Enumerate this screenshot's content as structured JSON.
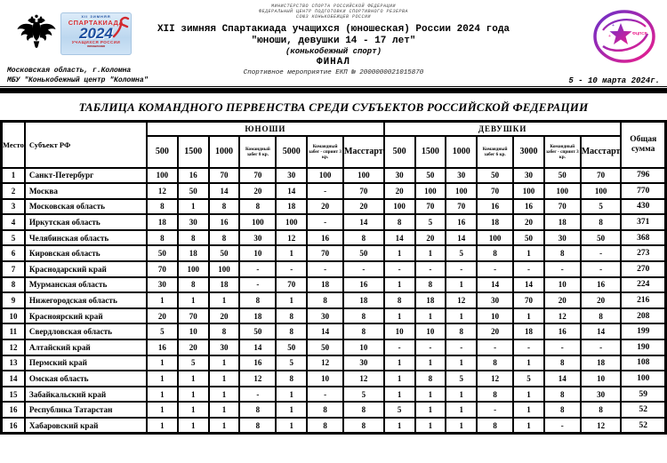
{
  "header": {
    "ministry_lines": [
      "МИНИСТЕРСТВО СПОРТА РОССИЙСКОЙ ФЕДЕРАЦИИ",
      "ФЕДЕРАЛЬНЫЙ ЦЕНТР ПОДГОТОВКИ СПОРТИВНОГО РЕЗЕРВА",
      "СОЮЗ КОНЬКОБЕЖЦЕВ РОССИИ"
    ],
    "title_line1": "XII зимняя Спартакиада учащихся (юношеская) России 2024 года",
    "title_line2": "\"юноши, девушки 14 - 17 лет\"",
    "title_line3": "(конькобежный спорт)",
    "title_line4": "ФИНАЛ",
    "event_line": "Спортивное мероприятие ЕКП № 2000000021015870",
    "venue_line1": "Московская область, г.Коломна",
    "venue_line2": "МБУ \"Конькобежный центр \"Коломна\"",
    "dates": "5 - 10 марта 2024г.",
    "spartakiada_logo": {
      "top": "XII ЗИМНЯЯ",
      "name": "СПАРТАКИАДА",
      "year": "2024",
      "sub": "УЧАЩИХСЯ РОССИИ",
      "sub2": "юношеская"
    },
    "fcpsr_logo_text": "ФЦПСР",
    "accent_colors": {
      "logo_purple": "#6a30c9",
      "logo_pink": "#ec1e8c",
      "logo_blue": "#1d4e9e",
      "logo_red": "#d22a2f"
    }
  },
  "table": {
    "title": "ТАБЛИЦА КОМАНДНОГО ПЕРВЕНСТВА СРЕДИ СУБЪЕКТОВ РОССИЙСКОЙ ФЕДЕРАЦИИ",
    "col_place": "Место",
    "col_subject": "Субъект РФ",
    "col_total": "Общая сумма",
    "group_boys": "ЮНОШИ",
    "group_girls": "ДЕВУШКИ",
    "boys_cols": [
      "500",
      "1500",
      "1000",
      "Командный забег 8 кр.",
      "5000",
      "Командный забег - спринт 3 кр.",
      "Масстарт"
    ],
    "girls_cols": [
      "500",
      "1500",
      "1000",
      "Командный забег 6 кр.",
      "3000",
      "Командный забег - спринт 3 кр.",
      "Масстарт"
    ],
    "rows": [
      {
        "place": "1",
        "subject": "Санкт-Петербург",
        "boys": [
          "100",
          "16",
          "70",
          "70",
          "30",
          "100",
          "100"
        ],
        "girls": [
          "30",
          "50",
          "30",
          "50",
          "30",
          "50",
          "70"
        ],
        "total": "796"
      },
      {
        "place": "2",
        "subject": "Москва",
        "boys": [
          "12",
          "50",
          "14",
          "20",
          "14",
          "-",
          "70"
        ],
        "girls": [
          "20",
          "100",
          "100",
          "70",
          "100",
          "100",
          "100"
        ],
        "total": "770"
      },
      {
        "place": "3",
        "subject": "Московская область",
        "boys": [
          "8",
          "1",
          "8",
          "8",
          "18",
          "20",
          "20"
        ],
        "girls": [
          "100",
          "70",
          "70",
          "16",
          "16",
          "70",
          "5"
        ],
        "total": "430"
      },
      {
        "place": "4",
        "subject": "Иркутская область",
        "boys": [
          "18",
          "30",
          "16",
          "100",
          "100",
          "-",
          "14"
        ],
        "girls": [
          "8",
          "5",
          "16",
          "18",
          "20",
          "18",
          "8"
        ],
        "total": "371"
      },
      {
        "place": "5",
        "subject": "Челябинская область",
        "boys": [
          "8",
          "8",
          "8",
          "30",
          "12",
          "16",
          "8"
        ],
        "girls": [
          "14",
          "20",
          "14",
          "100",
          "50",
          "30",
          "50"
        ],
        "total": "368"
      },
      {
        "place": "6",
        "subject": "Кировская область",
        "boys": [
          "50",
          "18",
          "50",
          "10",
          "1",
          "70",
          "50"
        ],
        "girls": [
          "1",
          "1",
          "5",
          "8",
          "1",
          "8",
          "-"
        ],
        "total": "273"
      },
      {
        "place": "7",
        "subject": "Краснодарский край",
        "boys": [
          "70",
          "100",
          "100",
          "-",
          "-",
          "-",
          "-"
        ],
        "girls": [
          "-",
          "-",
          "-",
          "-",
          "-",
          "-",
          "-"
        ],
        "total": "270"
      },
      {
        "place": "8",
        "subject": "Мурманская область",
        "boys": [
          "30",
          "8",
          "18",
          "-",
          "70",
          "18",
          "16"
        ],
        "girls": [
          "1",
          "8",
          "1",
          "14",
          "14",
          "10",
          "16"
        ],
        "total": "224"
      },
      {
        "place": "9",
        "subject": "Нижегородская область",
        "boys": [
          "1",
          "1",
          "1",
          "8",
          "1",
          "8",
          "18"
        ],
        "girls": [
          "8",
          "18",
          "12",
          "30",
          "70",
          "20",
          "20"
        ],
        "total": "216"
      },
      {
        "place": "10",
        "subject": "Красноярский край",
        "boys": [
          "20",
          "70",
          "20",
          "18",
          "8",
          "30",
          "8"
        ],
        "girls": [
          "1",
          "1",
          "1",
          "10",
          "1",
          "12",
          "8"
        ],
        "total": "208"
      },
      {
        "place": "11",
        "subject": "Свердловская область",
        "boys": [
          "5",
          "10",
          "8",
          "50",
          "8",
          "14",
          "8"
        ],
        "girls": [
          "10",
          "10",
          "8",
          "20",
          "18",
          "16",
          "14"
        ],
        "total": "199"
      },
      {
        "place": "12",
        "subject": "Алтайский край",
        "boys": [
          "16",
          "20",
          "30",
          "14",
          "50",
          "50",
          "10"
        ],
        "girls": [
          "-",
          "-",
          "-",
          "-",
          "-",
          "-",
          "-"
        ],
        "total": "190"
      },
      {
        "place": "13",
        "subject": "Пермский край",
        "boys": [
          "1",
          "5",
          "1",
          "16",
          "5",
          "12",
          "30"
        ],
        "girls": [
          "1",
          "1",
          "1",
          "8",
          "1",
          "8",
          "18"
        ],
        "total": "108"
      },
      {
        "place": "14",
        "subject": "Омская область",
        "boys": [
          "1",
          "1",
          "1",
          "12",
          "8",
          "10",
          "12"
        ],
        "girls": [
          "1",
          "8",
          "5",
          "12",
          "5",
          "14",
          "10"
        ],
        "total": "100"
      },
      {
        "place": "15",
        "subject": "Забайкальский край",
        "boys": [
          "1",
          "1",
          "1",
          "-",
          "1",
          "-",
          "5"
        ],
        "girls": [
          "1",
          "1",
          "1",
          "8",
          "1",
          "8",
          "30"
        ],
        "total": "59"
      },
      {
        "place": "16",
        "subject": "Республика Татарстан",
        "boys": [
          "1",
          "1",
          "1",
          "8",
          "1",
          "8",
          "8"
        ],
        "girls": [
          "5",
          "1",
          "1",
          "-",
          "1",
          "8",
          "8"
        ],
        "total": "52"
      },
      {
        "place": "16",
        "subject": "Хабаровский край",
        "boys": [
          "1",
          "1",
          "1",
          "8",
          "1",
          "8",
          "8"
        ],
        "girls": [
          "1",
          "1",
          "1",
          "8",
          "1",
          "-",
          "12"
        ],
        "total": "52"
      }
    ]
  }
}
